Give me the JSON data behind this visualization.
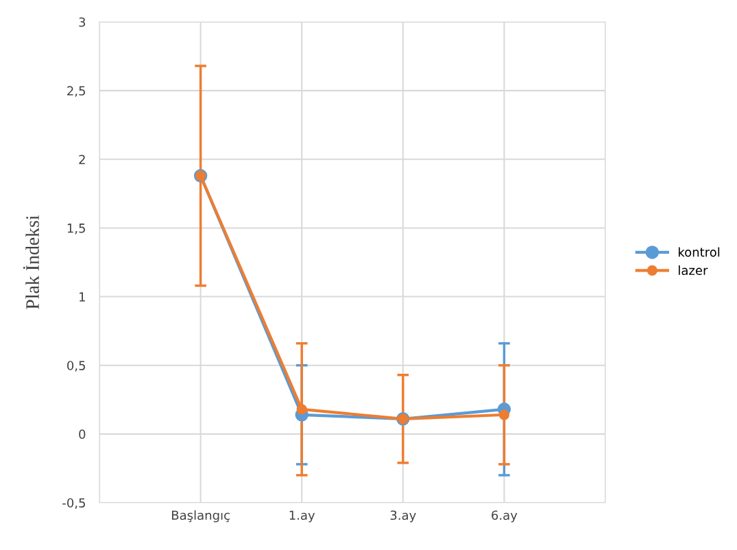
{
  "chart_data": {
    "type": "line",
    "ylabel": "Plak İndeksi",
    "categories": [
      null,
      "Başlangıç",
      "1.ay",
      "3.ay",
      "6.ay",
      null
    ],
    "series": [
      {
        "name": "kontrol",
        "color": "#5b9bd5",
        "values": [
          null,
          1.88,
          0.14,
          0.11,
          0.18,
          null
        ],
        "errors": [
          null,
          null,
          0.36,
          null,
          0.48,
          null
        ]
      },
      {
        "name": "lazer",
        "color": "#ed7d31",
        "values": [
          null,
          1.88,
          0.18,
          0.11,
          0.14,
          null
        ],
        "errors": [
          null,
          0.8,
          0.48,
          0.32,
          0.36,
          null
        ]
      }
    ],
    "ylim": [
      -0.5,
      3
    ],
    "yticks": [
      {
        "value": -0.5,
        "label": "-0,5"
      },
      0,
      {
        "value": 0.5,
        "label": "0,5"
      },
      1,
      {
        "value": 1.5,
        "label": "1,5"
      },
      2,
      {
        "value": 2.5,
        "label": "2,5"
      },
      3
    ],
    "grid": true,
    "legend": "right",
    "marker": "circle",
    "line_style": "solid"
  }
}
